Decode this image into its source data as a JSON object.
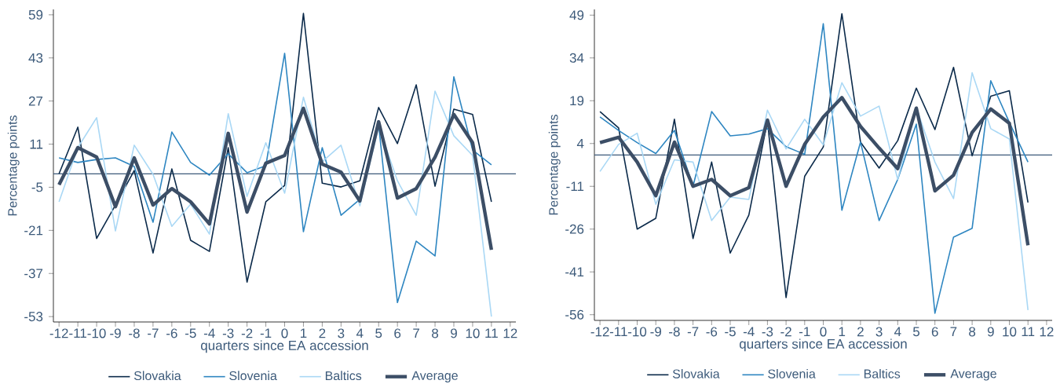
{
  "chart_data": [
    {
      "type": "line",
      "xlabel": "quarters since EA accession",
      "ylabel": "Percentage points",
      "x": [
        -12,
        -11,
        -10,
        -9,
        -8,
        -7,
        -6,
        -5,
        -4,
        -3,
        -2,
        -1,
        0,
        1,
        2,
        3,
        4,
        5,
        6,
        7,
        8,
        9,
        10,
        11
      ],
      "xlim": [
        -12.3,
        12.3
      ],
      "xticks": [
        -12,
        -11,
        -10,
        -9,
        -8,
        -7,
        -6,
        -5,
        -4,
        -3,
        -2,
        -1,
        0,
        1,
        2,
        3,
        4,
        5,
        6,
        7,
        8,
        9,
        10,
        11,
        12
      ],
      "ylim": [
        -55,
        61
      ],
      "yticks": [
        -53,
        -37,
        -21,
        -5,
        11,
        27,
        43,
        59
      ],
      "legend": "bottom",
      "grid": false,
      "line_style": "solid",
      "ref_lines": [
        {
          "axis": "y",
          "value": 0,
          "color": "#3c5a7a"
        }
      ],
      "series": [
        {
          "name": "Slovakia",
          "color": "#0b2a4a",
          "values": [
            0,
            17.3,
            -24,
            -11.6,
            1.2,
            -29.4,
            1.8,
            -24.7,
            -28.8,
            9.7,
            -40.2,
            -10.4,
            -4.3,
            59.5,
            -3.5,
            -4.9,
            -2.6,
            24.6,
            11.2,
            33,
            -4.6,
            24,
            22,
            -10.4
          ]
        },
        {
          "name": "Slovenia",
          "color": "#2e86c1",
          "values": [
            5.9,
            4.2,
            5.3,
            5.9,
            2.7,
            -18,
            15.5,
            4.2,
            -0.5,
            7.4,
            0.4,
            3,
            44.7,
            -21.5,
            9.7,
            -15.4,
            -9.5,
            18.2,
            -47.8,
            -25,
            -30.5,
            36,
            8.8,
            3.3
          ]
        },
        {
          "name": "Baltics",
          "color": "#aad8f5",
          "values": [
            -10.4,
            9.7,
            20.8,
            -21.2,
            10.6,
            -0.2,
            -19.5,
            -11.3,
            -22.4,
            22.3,
            -8.4,
            11.5,
            -7.2,
            28.4,
            4.5,
            10.6,
            -11.9,
            17.6,
            -2.6,
            -15.4,
            30.7,
            14.1,
            6.8,
            -53
          ]
        },
        {
          "name": "Average",
          "color": "#3c4e66",
          "values": [
            -4.1,
            9.7,
            6.2,
            -12.2,
            5.9,
            -11.6,
            -5.5,
            -10.4,
            -18.6,
            15,
            -14.2,
            3.9,
            6.8,
            24.3,
            3.6,
            0.6,
            -10.1,
            19.3,
            -9,
            -5.5,
            6.2,
            22,
            11.5,
            -28.2
          ]
        }
      ]
    },
    {
      "type": "line",
      "xlabel": "quarters since EA accession",
      "ylabel": "Percentage points",
      "x": [
        -12,
        -11,
        -10,
        -9,
        -8,
        -7,
        -6,
        -5,
        -4,
        -3,
        -2,
        -1,
        0,
        1,
        2,
        3,
        4,
        5,
        6,
        7,
        8,
        9,
        10,
        11
      ],
      "xlim": [
        -12.3,
        12.3
      ],
      "xticks": [
        -12,
        -11,
        -10,
        -9,
        -8,
        -7,
        -6,
        -5,
        -4,
        -3,
        -2,
        -1,
        0,
        1,
        2,
        3,
        4,
        5,
        6,
        7,
        8,
        9,
        10,
        11,
        12
      ],
      "ylim": [
        -58,
        51
      ],
      "yticks": [
        -56,
        -41,
        -26,
        -11,
        4,
        19,
        34,
        49
      ],
      "legend": "bottom",
      "grid": false,
      "line_style": "solid",
      "ref_lines": [
        {
          "axis": "y",
          "value": 0,
          "color": "#3c5a7a"
        }
      ],
      "series": [
        {
          "name": "Slovakia",
          "color": "#0b2a4a",
          "values": [
            15.2,
            9.5,
            -26,
            -22.2,
            12.5,
            -29.3,
            -2.5,
            -34.4,
            -21.1,
            11.9,
            -50,
            -7.5,
            2.8,
            49.5,
            4.5,
            -4.6,
            5,
            23.4,
            8.9,
            30.7,
            -0.3,
            20.6,
            22.5,
            -16.7
          ]
        },
        {
          "name": "Slovenia",
          "color": "#2e86c1",
          "values": [
            13.3,
            8.6,
            4.3,
            0.5,
            8.6,
            -11,
            15.2,
            6.7,
            7.3,
            9.2,
            2.9,
            0.2,
            46,
            -19.4,
            4.5,
            -23,
            -8.6,
            10.8,
            -55.5,
            -28.8,
            -25.7,
            26,
            11.4,
            -2.5
          ]
        },
        {
          "name": "Baltics",
          "color": "#aad8f5",
          "values": [
            -5.8,
            3.7,
            7.6,
            -17.3,
            -1.7,
            -2.5,
            -23,
            -14.8,
            -15.6,
            15.7,
            2.1,
            12.5,
            3.5,
            25.3,
            13.6,
            17.1,
            -8.6,
            16.6,
            -2.5,
            -15.3,
            28.8,
            9.2,
            5.6,
            -54.4
          ]
        },
        {
          "name": "Average",
          "color": "#3c4e66",
          "values": [
            4.3,
            6.2,
            -2.5,
            -14.3,
            4.5,
            -11,
            -8.6,
            -14.3,
            -11.5,
            12.2,
            -11,
            3.7,
            13.3,
            20.1,
            10,
            2.4,
            -4.8,
            16.4,
            -12.6,
            -7.1,
            7.9,
            16.1,
            11.1,
            -31.7
          ]
        }
      ]
    }
  ]
}
